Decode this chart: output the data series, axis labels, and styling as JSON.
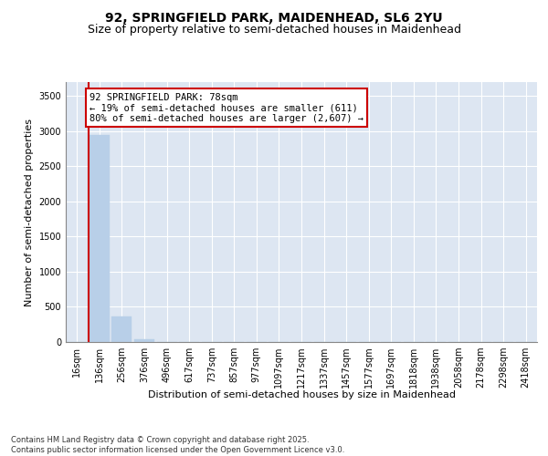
{
  "title_line1": "92, SPRINGFIELD PARK, MAIDENHEAD, SL6 2YU",
  "title_line2": "Size of property relative to semi-detached houses in Maidenhead",
  "xlabel": "Distribution of semi-detached houses by size in Maidenhead",
  "ylabel": "Number of semi-detached properties",
  "categories": [
    "16sqm",
    "136sqm",
    "256sqm",
    "376sqm",
    "496sqm",
    "617sqm",
    "737sqm",
    "857sqm",
    "977sqm",
    "1097sqm",
    "1217sqm",
    "1337sqm",
    "1457sqm",
    "1577sqm",
    "1697sqm",
    "1818sqm",
    "1938sqm",
    "2058sqm",
    "2178sqm",
    "2298sqm",
    "2418sqm"
  ],
  "values": [
    0,
    2950,
    360,
    45,
    3,
    1,
    0,
    0,
    0,
    0,
    0,
    0,
    0,
    0,
    0,
    0,
    0,
    0,
    0,
    0,
    0
  ],
  "bar_color": "#b8cfe8",
  "bar_edge_color": "#b8cfe8",
  "property_line_color": "#cc0000",
  "annotation_text": "92 SPRINGFIELD PARK: 78sqm\n← 19% of semi-detached houses are smaller (611)\n80% of semi-detached houses are larger (2,607) →",
  "annotation_box_color": "#ffffff",
  "annotation_box_edge": "#cc0000",
  "ylim": [
    0,
    3700
  ],
  "yticks": [
    0,
    500,
    1000,
    1500,
    2000,
    2500,
    3000,
    3500
  ],
  "background_color": "#dde6f2",
  "grid_color": "#ffffff",
  "footer_text": "Contains HM Land Registry data © Crown copyright and database right 2025.\nContains public sector information licensed under the Open Government Licence v3.0.",
  "title_fontsize": 10,
  "subtitle_fontsize": 9,
  "axis_label_fontsize": 8,
  "tick_fontsize": 7,
  "annotation_fontsize": 7.5
}
